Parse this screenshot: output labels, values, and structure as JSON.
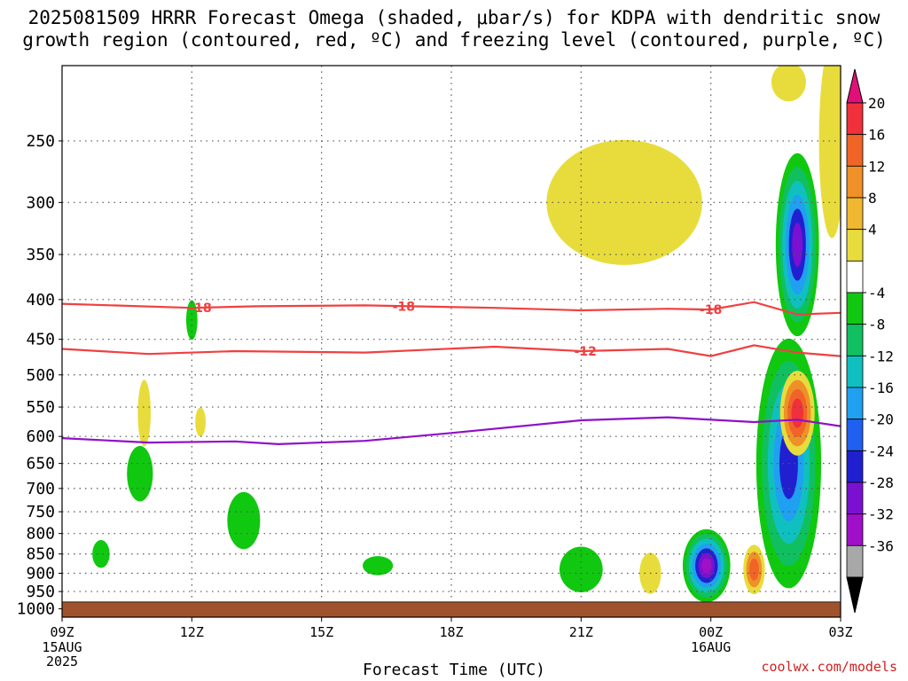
{
  "title_line1": "2025081509 HRRR Forecast Omega (shaded, μbar/s) for KDPA with dendritic snow",
  "title_line2": "growth region (contoured, red, ºC) and freezing level (contoured, purple, ºC)",
  "credit": "coolwx.com/models",
  "chart_data": {
    "type": "time-height contour",
    "xlabel": "Forecast Time (UTC)",
    "x_ticks": [
      {
        "hour": 0,
        "label": "09Z",
        "sub1": "15AUG",
        "sub2": "2025"
      },
      {
        "hour": 3,
        "label": "12Z",
        "sub1": "",
        "sub2": ""
      },
      {
        "hour": 6,
        "label": "15Z",
        "sub1": "",
        "sub2": ""
      },
      {
        "hour": 9,
        "label": "18Z",
        "sub1": "",
        "sub2": ""
      },
      {
        "hour": 12,
        "label": "21Z",
        "sub1": "",
        "sub2": ""
      },
      {
        "hour": 15,
        "label": "00Z",
        "sub1": "16AUG",
        "sub2": ""
      },
      {
        "hour": 18,
        "label": "03Z",
        "sub1": "",
        "sub2": ""
      }
    ],
    "xlim_hours": [
      0,
      18
    ],
    "y_ticks": [
      250,
      300,
      350,
      400,
      450,
      500,
      550,
      600,
      650,
      700,
      750,
      800,
      850,
      900,
      950,
      1000
    ],
    "ylim_hPa": [
      200,
      1025
    ],
    "y_scale": "log",
    "grid": true,
    "colorbar": {
      "labels": [
        "20",
        "16",
        "12",
        "8",
        "4",
        "-4",
        "-8",
        "-12",
        "-16",
        "-20",
        "-24",
        "-28",
        "-32",
        "-36"
      ],
      "colors": [
        "#e0107a",
        "#f0303a",
        "#f06428",
        "#f09028",
        "#f0b830",
        "#e8dc3c",
        "#ffffff",
        "#10c810",
        "#10c060",
        "#10c0c0",
        "#20a0f0",
        "#2060f0",
        "#2020d0",
        "#7a10d0",
        "#a010c8",
        "#a8a8a8",
        "#000000"
      ]
    },
    "temperature_contours": [
      {
        "label": "-18",
        "color": "#f04040",
        "points": [
          [
            0,
            405
          ],
          [
            3,
            410
          ],
          [
            4.5,
            408
          ],
          [
            7,
            407
          ],
          [
            10,
            410
          ],
          [
            12,
            413
          ],
          [
            14,
            411
          ],
          [
            15,
            412
          ],
          [
            16,
            403
          ],
          [
            17,
            418
          ],
          [
            18,
            416
          ]
        ],
        "labels_at": [
          3.2,
          7.9,
          15.0
        ]
      },
      {
        "label": "-12",
        "color": "#f04040",
        "points": [
          [
            0,
            463
          ],
          [
            2,
            470
          ],
          [
            4,
            466
          ],
          [
            7,
            468
          ],
          [
            10,
            460
          ],
          [
            12,
            466
          ],
          [
            14,
            463
          ],
          [
            15,
            473
          ],
          [
            16,
            458
          ],
          [
            17,
            468
          ],
          [
            18,
            473
          ]
        ],
        "labels_at": [
          12.1
        ]
      },
      {
        "label": "0",
        "color": "#9010c8",
        "points": [
          [
            0,
            603
          ],
          [
            2,
            611
          ],
          [
            4,
            609
          ],
          [
            5,
            614
          ],
          [
            7,
            608
          ],
          [
            9,
            594
          ],
          [
            12,
            572
          ],
          [
            14,
            567
          ],
          [
            16,
            575
          ],
          [
            17,
            571
          ],
          [
            18,
            582
          ]
        ],
        "labels_at": []
      }
    ],
    "omega_regions": [
      {
        "hour": 1.9,
        "p": 560,
        "hw": 0.15,
        "hh": 55,
        "value": 4
      },
      {
        "hour": 3.0,
        "p": 425,
        "hw": 0.13,
        "hh": 25,
        "value": -4
      },
      {
        "hour": 3.2,
        "p": 575,
        "hw": 0.12,
        "hh": 25,
        "value": 4
      },
      {
        "hour": 1.8,
        "p": 670,
        "hw": 0.3,
        "hh": 55,
        "value": -4
      },
      {
        "hour": 0.9,
        "p": 850,
        "hw": 0.2,
        "hh": 35,
        "value": -4
      },
      {
        "hour": 4.2,
        "p": 770,
        "hw": 0.38,
        "hh": 65,
        "value": -4
      },
      {
        "hour": 7.3,
        "p": 880,
        "hw": 0.35,
        "hh": 25,
        "value": -4
      },
      {
        "hour": 12.0,
        "p": 890,
        "hw": 0.5,
        "hh": 60,
        "value": -4
      },
      {
        "hour": 13.0,
        "p": 300,
        "hw": 1.8,
        "hh": 55,
        "value": 4
      },
      {
        "hour": 13.6,
        "p": 900,
        "hw": 0.25,
        "hh": 55,
        "value": 4
      },
      {
        "hour": 14.9,
        "p": 880,
        "hw": 0.55,
        "hh": 95,
        "value": -28
      },
      {
        "hour": 16.0,
        "p": 890,
        "hw": 0.25,
        "hh": 65,
        "value": 12
      },
      {
        "hour": 16.8,
        "p": 650,
        "hw": 0.75,
        "hh": 230,
        "value": -20
      },
      {
        "hour": 17.0,
        "p": 340,
        "hw": 0.5,
        "hh": 90,
        "value": -24
      },
      {
        "hour": 17.0,
        "p": 560,
        "hw": 0.4,
        "hh": 70,
        "value": 16
      },
      {
        "hour": 16.8,
        "p": 210,
        "hw": 0.4,
        "hh": 12,
        "value": 4
      },
      {
        "hour": 17.8,
        "p": 250,
        "hw": 0.3,
        "hh": 70,
        "value": 4
      }
    ]
  }
}
